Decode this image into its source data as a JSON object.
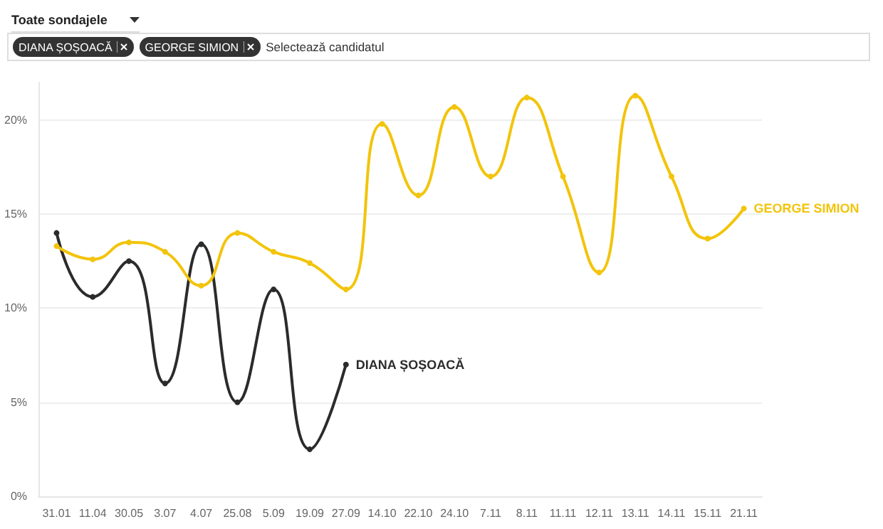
{
  "chart_data": {
    "type": "line",
    "annotations": [
      "Toate sondajele",
      "Selectează candidatul"
    ],
    "categories": [
      "31.01",
      "11.04",
      "30.05",
      "3.07",
      "4.07",
      "25.08",
      "5.09",
      "19.09",
      "27.09",
      "14.10",
      "22.10",
      "24.10",
      "7.11",
      "8.11",
      "11.11",
      "12.11",
      "13.11",
      "14.11",
      "15.11",
      "21.11"
    ],
    "series": [
      {
        "name": "DIANA ȘOȘOACĂ",
        "color": "#2b2b2b",
        "values": [
          14.0,
          10.6,
          12.5,
          6.0,
          13.4,
          5.0,
          11.0,
          2.5,
          7.0,
          null,
          null,
          null,
          null,
          null,
          null,
          null,
          null,
          null,
          null,
          null
        ]
      },
      {
        "name": "GEORGE SIMION",
        "color": "#f2c40c",
        "values": [
          13.3,
          12.6,
          13.5,
          13.0,
          11.2,
          14.0,
          13.0,
          12.4,
          11.0,
          19.8,
          16.0,
          20.7,
          17.0,
          21.2,
          17.0,
          11.9,
          21.3,
          17.0,
          13.7,
          15.3
        ]
      }
    ],
    "ylim": [
      0,
      22
    ],
    "yticks": [
      {
        "value": 0,
        "label": "0%"
      },
      {
        "value": 5,
        "label": "5%"
      },
      {
        "value": 10,
        "label": "10%"
      },
      {
        "value": 15,
        "label": "15%"
      },
      {
        "value": 20,
        "label": "20%"
      }
    ],
    "grid": "y",
    "legend": false,
    "marker": "circle",
    "line_style": "solid"
  }
}
